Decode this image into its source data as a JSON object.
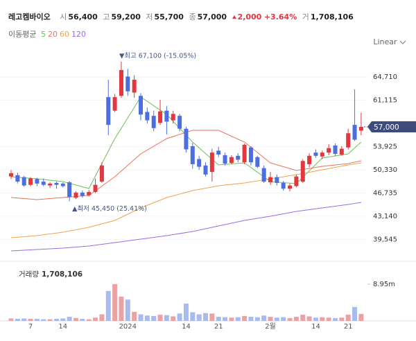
{
  "header": {
    "name": "레고켐바이오",
    "fields": [
      {
        "label": "시",
        "value": "56,400"
      },
      {
        "label": "고",
        "value": "59,200"
      },
      {
        "label": "저",
        "value": "55,700"
      },
      {
        "label": "종",
        "value": "57,000"
      }
    ],
    "change": "2,000",
    "change_pct": "+3.64%",
    "volume_label": "거",
    "volume": "1,708,106"
  },
  "scale_button": "Linear",
  "chart_data": [
    {
      "type": "candlestick",
      "legend_title": "이동평균",
      "categories": [
        null,
        null,
        null,
        "7",
        null,
        null,
        null,
        null,
        "14",
        null,
        null,
        null,
        null,
        null,
        null,
        null,
        null,
        null,
        "2024",
        null,
        null,
        null,
        null,
        null,
        null,
        null,
        null,
        "14",
        null,
        null,
        null,
        null,
        "21",
        null,
        null,
        null,
        null,
        null,
        null,
        null,
        "2월",
        null,
        null,
        null,
        null,
        null,
        null,
        "14",
        null,
        null,
        null,
        null,
        "21",
        null,
        null
      ],
      "open": [
        49300,
        49500,
        49200,
        48000,
        48900,
        48500,
        47900,
        48300,
        48200,
        48400,
        46000,
        46800,
        46400,
        46900,
        48500,
        61600,
        59500,
        61800,
        64800,
        62300,
        61800,
        59300,
        58700,
        57600,
        59500,
        58000,
        58700,
        56700,
        54000,
        52000,
        51000,
        50000,
        53300,
        52600,
        51400,
        52500,
        51500,
        53800,
        52300,
        50600,
        48400,
        49200,
        48300,
        47400,
        47800,
        48500,
        51200,
        53000,
        52400,
        53000,
        54100,
        52700,
        53800,
        57300,
        56400
      ],
      "high": [
        50300,
        49900,
        49400,
        49200,
        49100,
        49000,
        48400,
        48500,
        48400,
        48600,
        47000,
        47100,
        47200,
        49000,
        51500,
        64300,
        62100,
        67100,
        66000,
        65000,
        62200,
        60000,
        59500,
        61200,
        60200,
        59500,
        59000,
        57000,
        54500,
        52500,
        51500,
        53600,
        53900,
        53000,
        52600,
        52900,
        54400,
        54000,
        52500,
        51000,
        50000,
        49600,
        48600,
        48200,
        49600,
        52000,
        52900,
        53500,
        53300,
        54300,
        54400,
        54000,
        56700,
        62800,
        59200
      ],
      "low": [
        48900,
        48200,
        47700,
        47800,
        47800,
        47800,
        47500,
        47400,
        47600,
        45450,
        45800,
        46000,
        46200,
        46700,
        48300,
        55700,
        59300,
        61500,
        61800,
        61500,
        58000,
        57500,
        56300,
        57300,
        55800,
        57500,
        56300,
        53000,
        50500,
        50300,
        49300,
        48500,
        52300,
        51000,
        51200,
        51500,
        51200,
        51000,
        50600,
        48300,
        48000,
        47900,
        47100,
        47000,
        47600,
        48300,
        50700,
        52200,
        52000,
        52600,
        52500,
        52500,
        53500,
        54800,
        55700
      ],
      "close": [
        49800,
        48500,
        47900,
        49000,
        48200,
        48000,
        48200,
        48000,
        47800,
        46100,
        46800,
        46300,
        46900,
        48000,
        51000,
        57300,
        61600,
        65800,
        62500,
        64300,
        58900,
        58000,
        56800,
        59400,
        57800,
        59000,
        56700,
        53500,
        51200,
        50800,
        49600,
        53000,
        52700,
        51300,
        52300,
        51900,
        54200,
        51500,
        50800,
        48500,
        49200,
        48300,
        47400,
        47900,
        49300,
        51700,
        52500,
        52500,
        53000,
        53700,
        52800,
        53600,
        56000,
        55000,
        57000
      ],
      "up_color": "#e0383e",
      "down_color": "#4c6fe0",
      "series": [
        {
          "name": "5",
          "color": "#6cbf5a",
          "x": [
            0,
            4,
            8,
            12,
            16,
            20,
            24,
            28,
            32,
            36,
            40,
            44,
            48,
            52,
            54
          ],
          "values": [
            49260,
            48940,
            48510,
            47430,
            55170,
            61620,
            58930,
            54630,
            51080,
            51410,
            48510,
            48180,
            52160,
            52800,
            54630
          ]
        },
        {
          "name": "20",
          "color": "#e8735a",
          "x": [
            0,
            4,
            8,
            12,
            16,
            20,
            24,
            28,
            32,
            36,
            40,
            44,
            48,
            52,
            54
          ],
          "values": [
            46030,
            45710,
            46030,
            46360,
            49260,
            52800,
            55170,
            56460,
            56460,
            54630,
            51410,
            50220,
            50870,
            51300,
            51730
          ]
        },
        {
          "name": "60",
          "color": "#f0a24e",
          "x": [
            0,
            4,
            8,
            12,
            16,
            20,
            24,
            28,
            32,
            36,
            40,
            44,
            48,
            52,
            54
          ],
          "values": [
            39800,
            40120,
            40660,
            41410,
            42490,
            44420,
            46030,
            47110,
            47860,
            48290,
            48940,
            49580,
            50330,
            51080,
            51410
          ]
        },
        {
          "name": "120",
          "color": "#9b6be0",
          "x": [
            0,
            4,
            8,
            12,
            16,
            20,
            24,
            28,
            32,
            36,
            40,
            44,
            48,
            52,
            54
          ],
          "values": [
            37760,
            37970,
            38190,
            38510,
            39050,
            39590,
            40120,
            40770,
            41630,
            42490,
            43130,
            43880,
            44420,
            44960,
            45280
          ]
        }
      ],
      "high_annotation": "▼최고 67,100 (-15.05%)",
      "low_annotation": "▲최저 45,450 (25.41%)",
      "last_price": {
        "value": 57000,
        "label": "57,000"
      },
      "ylim": [
        36900,
        68600
      ],
      "yticks": [
        {
          "value": 39545,
          "label": "39,545"
        },
        {
          "value": 43140,
          "label": "43,140"
        },
        {
          "value": 46735,
          "label": "46,735"
        },
        {
          "value": 50330,
          "label": "50,330"
        },
        {
          "value": 53925,
          "label": "53,925"
        },
        {
          "value": 61115,
          "label": "61,115"
        },
        {
          "value": 64710,
          "label": "64,710"
        }
      ],
      "grid": true
    },
    {
      "type": "bar",
      "title": "거래량",
      "value_label": "1,708,106",
      "values": [
        600000,
        500000,
        600000,
        500000,
        500000,
        400000,
        400000,
        500000,
        600000,
        1000000,
        700000,
        500000,
        400000,
        800000,
        1600000,
        7300000,
        8950000,
        5900000,
        5200000,
        2200000,
        1600000,
        1300000,
        1200000,
        1500000,
        1400000,
        1100000,
        1800000,
        4200000,
        2100000,
        1600000,
        1900000,
        1800000,
        1000000,
        900000,
        800000,
        900000,
        1200000,
        1000000,
        900000,
        1300000,
        1000000,
        800000,
        900000,
        700000,
        1000000,
        1500000,
        1100000,
        800000,
        900000,
        800000,
        700000,
        800000,
        1500000,
        3400000,
        1708106
      ],
      "up_color": "#eaa2a5",
      "down_color": "#a8bbee",
      "ylim": [
        0,
        13500000
      ],
      "yticks": [
        {
          "value": 8950000,
          "label": "8.95m"
        }
      ]
    }
  ]
}
